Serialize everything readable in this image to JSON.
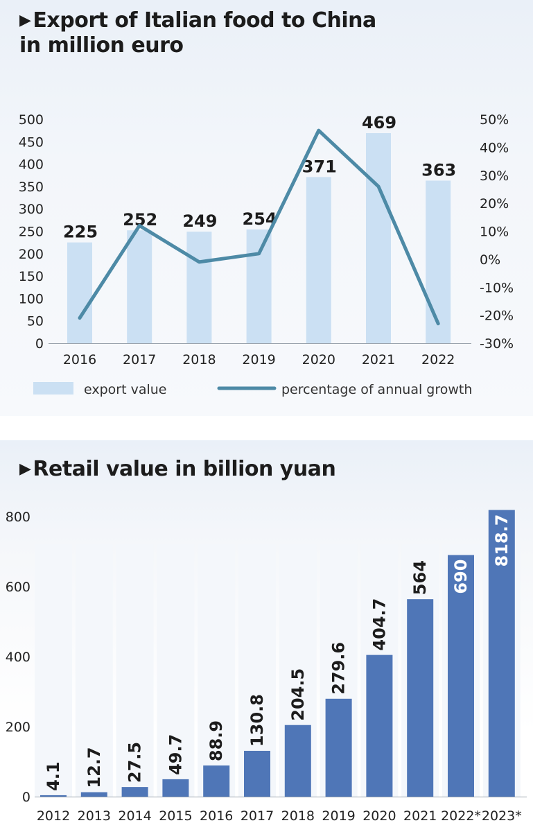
{
  "chart_data": [
    {
      "type": "bar",
      "title": "Export of Italian food to China in million euro",
      "title_lines": [
        "Export of Italian food to China",
        "in million euro"
      ],
      "categories": [
        "2016",
        "2017",
        "2018",
        "2019",
        "2020",
        "2021",
        "2022"
      ],
      "series": [
        {
          "name": "export value",
          "type": "bar",
          "axis": "left",
          "color": "#cbe0f3",
          "values": [
            225,
            252,
            249,
            254,
            371,
            469,
            363
          ],
          "labels": [
            "225",
            "252",
            "249",
            "254",
            "371",
            "469",
            "363"
          ]
        },
        {
          "name": "percentage of annual growth",
          "type": "line",
          "axis": "right",
          "color": "#4d8aa6",
          "values": [
            -21,
            12,
            -1,
            2,
            46,
            26,
            -23
          ]
        }
      ],
      "ylim": [
        0,
        500
      ],
      "y_ticks": [
        "0",
        "50",
        "100",
        "150",
        "200",
        "250",
        "300",
        "350",
        "400",
        "450",
        "500"
      ],
      "y2lim": [
        -30,
        50
      ],
      "y2_ticks": [
        "-30%",
        "-20%",
        "-10%",
        "0%",
        "10%",
        "20%",
        "30%",
        "40%",
        "50%"
      ],
      "legend": [
        "export value",
        "percentage of annual growth"
      ],
      "legend_position": "bottom"
    },
    {
      "type": "bar",
      "title": "Retail value in billion yuan",
      "categories": [
        "2012",
        "2013",
        "2014",
        "2015",
        "2016",
        "2017",
        "2018",
        "2019",
        "2020",
        "2021",
        "2022*",
        "2023*"
      ],
      "series": [
        {
          "name": "Retail value",
          "color": "#4f76b7",
          "values": [
            4.1,
            12.7,
            27.5,
            49.7,
            88.9,
            130.8,
            204.5,
            279.6,
            404.7,
            564,
            690,
            818.7
          ],
          "labels": [
            "4.1",
            "12.7",
            "27.5",
            "49.7",
            "88.9",
            "130.8",
            "204.5",
            "279.6",
            "404.7",
            "564",
            "690",
            "818.7"
          ]
        }
      ],
      "ylim": [
        0,
        800
      ],
      "y_ticks": [
        "0",
        "200",
        "400",
        "600",
        "800"
      ]
    }
  ]
}
